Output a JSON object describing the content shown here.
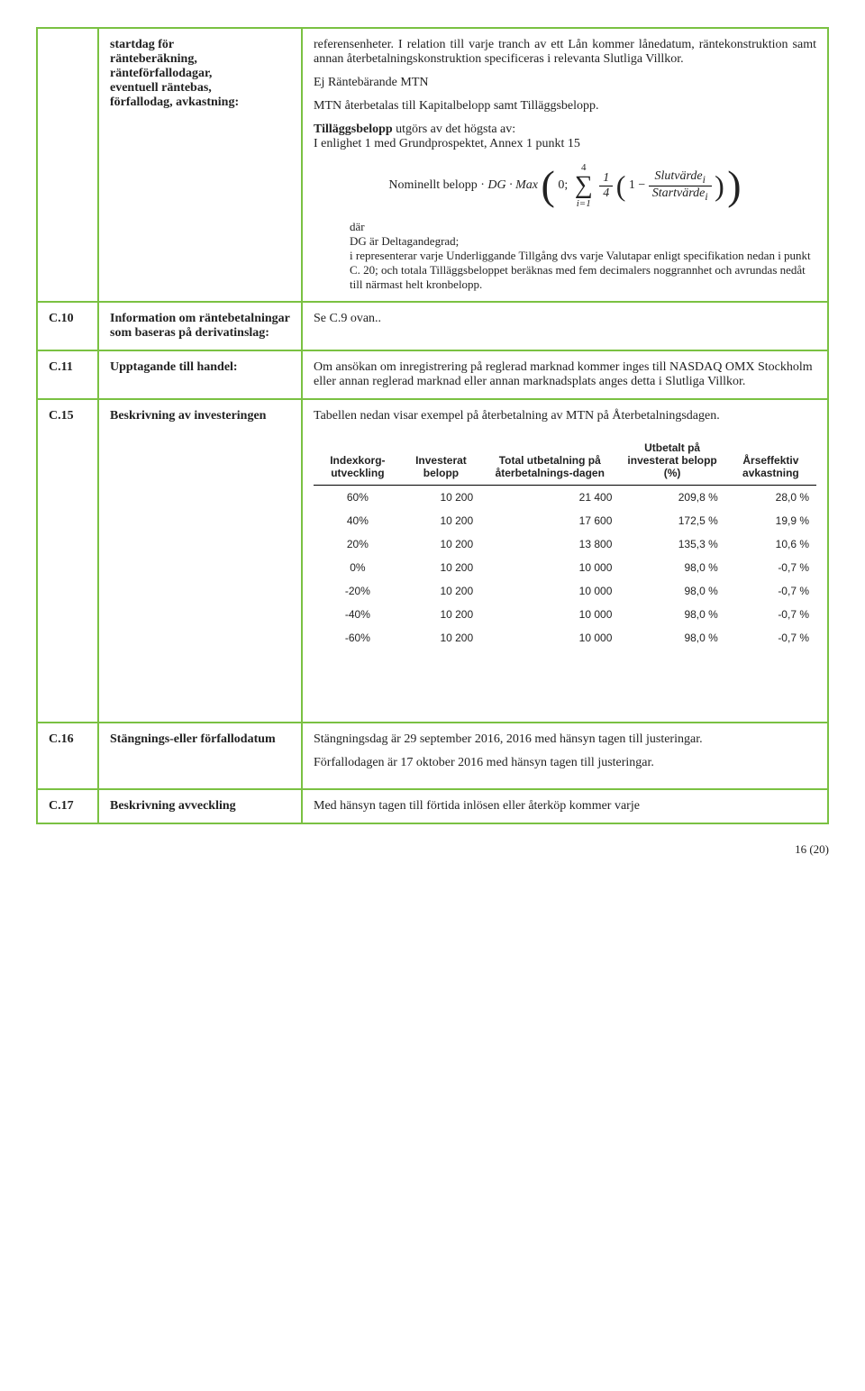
{
  "rows": {
    "r0": {
      "label_l1": "startdag för",
      "label_l2": "ränteberäkning,",
      "label_l3": "ränteförfallodagar,",
      "label_l4": "eventuell räntebas,",
      "label_l5": "förfallodag, avkastning:",
      "p1": "referensenheter. I relation till varje tranch av ett Lån kommer lånedatum, räntekonstruktion samt annan återbetalningskonstruktion specificeras i relevanta Slutliga Villkor.",
      "p2": "Ej Räntebärande MTN",
      "p3": "MTN återbetalas till Kapitalbelopp samt Tilläggsbelopp.",
      "p4a": "Tilläggsbelopp",
      "p4b": " utgörs av det högsta av:",
      "p4c": "I enlighet 1 med Grundprospektet, Annex 1 punkt 15",
      "formula_prefix": "Nominellt belopp ·",
      "formula_dg": "DG · Max",
      "formula_zero": "0;",
      "sum_top": "4",
      "sum_bot": "i=1",
      "frac1_num": "1",
      "frac1_den": "4",
      "one_minus": "1 −",
      "frac2_num": "Slutvärde",
      "frac2_den": "Startvärde",
      "sub_i": "i",
      "dar": "där",
      "dg_line": "DG är Deltagandegrad;",
      "rep_line": " i representerar varje Underliggande Tillgång dvs varje Valutapar enligt specifikation nedan i punkt C. 20; och totala Tilläggsbeloppet beräknas med fem decimalers noggrannhet och avrundas nedåt till närmast helt kronbelopp."
    },
    "c10": {
      "num": "C.10",
      "label": "Information om räntebetalningar som baseras på derivatinslag:",
      "text": "Se C.9 ovan.."
    },
    "c11": {
      "num": "C.11",
      "label": "Upptagande till handel:",
      "text": "Om ansökan om inregistrering på reglerad marknad kommer inges till NASDAQ OMX Stockholm eller annan reglerad marknad eller annan marknadsplats anges detta i Slutliga Villkor."
    },
    "c15": {
      "num": "C.15",
      "label": "Beskrivning av investeringen",
      "text": "Tabellen nedan visar exempel på återbetalning av MTN på Återbetalningsdagen."
    },
    "c16": {
      "num": "C.16",
      "label": "Stängnings-eller förfallodatum",
      "text1": "Stängningsdag är 29 september 2016, 2016 med hänsyn tagen till justeringar.",
      "text2": "Förfallodagen är 17 oktober 2016 med hänsyn tagen till justeringar."
    },
    "c17": {
      "num": "C.17",
      "label": "Beskrivning avveckling",
      "text": "Med hänsyn tagen till förtida inlösen eller återköp kommer varje"
    }
  },
  "repay_table": {
    "headers": [
      "Indexkorg-utveckling",
      "Investerat belopp",
      "Total utbetalning på återbetalnings-dagen",
      "Utbetalt på investerat belopp (%)",
      "Årseffektiv avkastning"
    ],
    "rows": [
      [
        "60%",
        "10 200",
        "21 400",
        "209,8 %",
        "28,0 %"
      ],
      [
        "40%",
        "10 200",
        "17 600",
        "172,5 %",
        "19,9 %"
      ],
      [
        "20%",
        "10 200",
        "13 800",
        "135,3 %",
        "10,6 %"
      ],
      [
        "0%",
        "10 200",
        "10 000",
        "98,0 %",
        "-0,7 %"
      ],
      [
        "-20%",
        "10 200",
        "10 000",
        "98,0 %",
        "-0,7 %"
      ],
      [
        "-40%",
        "10 200",
        "10 000",
        "98,0 %",
        "-0,7 %"
      ],
      [
        "-60%",
        "10 200",
        "10 000",
        "98,0 %",
        "-0,7 %"
      ]
    ]
  },
  "page_number": "16 (20)"
}
